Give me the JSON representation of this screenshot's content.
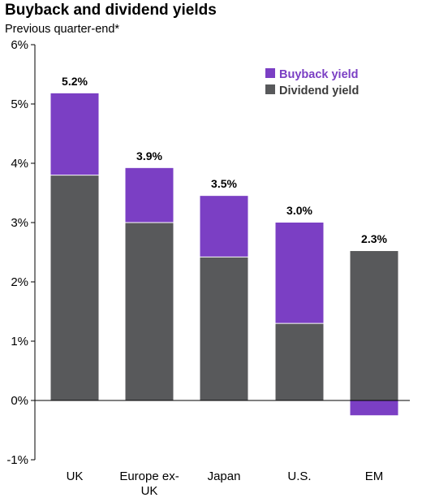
{
  "chart_data": {
    "type": "bar",
    "stacked": true,
    "title": "Buyback and dividend yields",
    "subtitle": "Previous quarter-end*",
    "ylim": [
      -1,
      6
    ],
    "yticks": [
      "-1%",
      "0%",
      "1%",
      "2%",
      "3%",
      "4%",
      "5%",
      "6%"
    ],
    "categories": [
      [
        "UK"
      ],
      [
        "Europe ex-",
        "UK"
      ],
      [
        "Japan"
      ],
      [
        "U.S."
      ],
      [
        "EM"
      ]
    ],
    "series": [
      {
        "name": "Dividend yield",
        "color": "#58595b",
        "values": [
          3.8,
          3.0,
          2.42,
          1.3,
          2.52
        ]
      },
      {
        "name": "Buyback yield",
        "color": "#7b3fc4",
        "values": [
          1.38,
          0.92,
          1.03,
          1.7,
          -0.25
        ]
      }
    ],
    "totals": [
      "5.2%",
      "3.9%",
      "3.5%",
      "3.0%",
      "2.3%"
    ],
    "legend": {
      "position": "top-right",
      "order": [
        "Buyback yield",
        "Dividend yield"
      ]
    },
    "grid": false
  }
}
